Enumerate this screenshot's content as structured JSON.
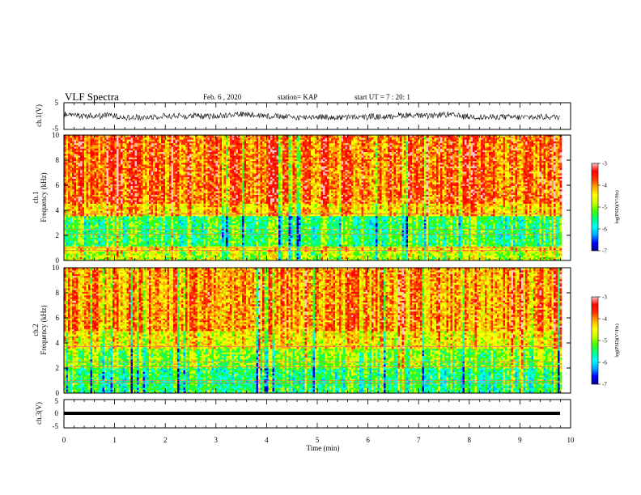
{
  "header": {
    "title": "VLF Spectra",
    "date": "Feb. 6 , 2020",
    "station": "station= KAP",
    "start_ut": "start UT = 7 : 20: 1"
  },
  "colors": {
    "spectrogram_scale": [
      "#000090",
      "#0000ff",
      "#00aaff",
      "#00ffff",
      "#00ff80",
      "#40ff00",
      "#ccff00",
      "#ffff00",
      "#ffaa00",
      "#ff3300",
      "#ff0000",
      "#ffc0c0"
    ],
    "waveform": "#000000"
  },
  "chart_data": [
    {
      "type": "line",
      "panel": "ch1-waveform",
      "ylabel": "ch.1(V)",
      "ylim": [
        -5,
        5
      ],
      "y_ticks": [
        "5",
        "-5"
      ],
      "series": [
        {
          "values": "noisy waveform, approximately -2 to 2 V"
        }
      ]
    },
    {
      "type": "heatmap",
      "panel": "ch1-spectrogram",
      "ylabel_lines": [
        "ch.1",
        "Frequency (kHz)"
      ],
      "ylim": [
        0,
        10
      ],
      "y_ticks": [
        "0",
        "2",
        "4",
        "6",
        "8",
        "10"
      ],
      "colorbar": {
        "label": "log(PSD)(V²/Hz)",
        "range": [
          -7,
          -3
        ],
        "ticks": [
          "-3",
          "-4",
          "-5",
          "-6",
          "-7"
        ]
      },
      "bands": [
        {
          "from": 0,
          "to": 0.7,
          "level": -4.8
        },
        {
          "from": 0.7,
          "to": 1.2,
          "level": -4.5
        },
        {
          "from": 1.2,
          "to": 3.6,
          "level": -5.3
        },
        {
          "from": 3.6,
          "to": 4.6,
          "level": -4.3
        },
        {
          "from": 4.6,
          "to": 10,
          "level": -3.9
        }
      ]
    },
    {
      "type": "heatmap",
      "panel": "ch2-spectrogram",
      "ylabel_lines": [
        "ch.2",
        "Frequency (kHz)"
      ],
      "ylim": [
        0,
        10
      ],
      "y_ticks": [
        "0",
        "2",
        "4",
        "6",
        "8",
        "10"
      ],
      "colorbar": {
        "label": "log(PSD)(V²/Hz)",
        "range": [
          -7,
          -3
        ],
        "ticks": [
          "-3",
          "-4",
          "-5",
          "-6",
          "-7"
        ]
      },
      "bands": [
        {
          "from": 0,
          "to": 2.0,
          "level": -5.4
        },
        {
          "from": 2.0,
          "to": 3.5,
          "level": -5.0
        },
        {
          "from": 3.5,
          "to": 5.0,
          "level": -4.5
        },
        {
          "from": 5.0,
          "to": 10,
          "level": -4.1
        }
      ]
    },
    {
      "type": "line",
      "panel": "ch3-waveform",
      "ylabel": "ch.3(V)",
      "ylim": [
        -5,
        5
      ],
      "y_ticks": [
        "5",
        "0",
        "-5"
      ],
      "series": [
        {
          "values": "flat line at approximately 0 V"
        }
      ]
    }
  ],
  "x_axis": {
    "label": "Time (min)",
    "range": [
      0,
      10
    ],
    "data_end": 9.8,
    "ticks": [
      "0",
      "1",
      "2",
      "3",
      "4",
      "5",
      "6",
      "7",
      "8",
      "9",
      "10"
    ]
  }
}
